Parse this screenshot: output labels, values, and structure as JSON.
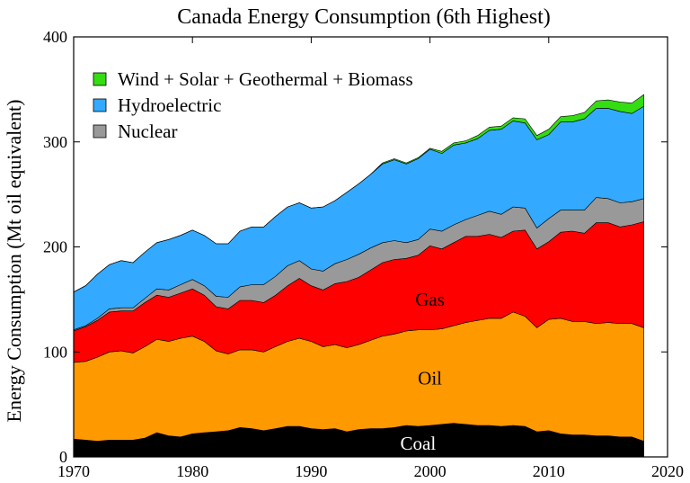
{
  "chart_data": {
    "type": "area",
    "title": "Canada Energy Consumption (6th Highest)",
    "xlabel": "",
    "ylabel": "Energy Consumption (Mt oil equivalent)",
    "xlim": [
      1970,
      2020
    ],
    "ylim": [
      0,
      400
    ],
    "xticks": [
      1970,
      1980,
      1990,
      2000,
      2010,
      2020
    ],
    "yticks": [
      0,
      100,
      200,
      300,
      400
    ],
    "stacked": true,
    "grid": false,
    "legend_position": "top-left",
    "x": [
      1970,
      1971,
      1972,
      1973,
      1974,
      1975,
      1976,
      1977,
      1978,
      1979,
      1980,
      1981,
      1982,
      1983,
      1984,
      1985,
      1986,
      1987,
      1988,
      1989,
      1990,
      1991,
      1992,
      1993,
      1994,
      1995,
      1996,
      1997,
      1998,
      1999,
      2000,
      2001,
      2002,
      2003,
      2004,
      2005,
      2006,
      2007,
      2008,
      2009,
      2010,
      2011,
      2012,
      2013,
      2014,
      2015,
      2016,
      2017,
      2018
    ],
    "series": [
      {
        "name": "Coal",
        "color": "#000000",
        "values": [
          17,
          16,
          15,
          16,
          16,
          16,
          18,
          23,
          20,
          19,
          22,
          23,
          24,
          25,
          28,
          27,
          25,
          27,
          29,
          29,
          27,
          26,
          27,
          24,
          26,
          27,
          27,
          28,
          30,
          29,
          30,
          31,
          32,
          31,
          30,
          30,
          29,
          30,
          29,
          24,
          25,
          22,
          21,
          21,
          20,
          20,
          19,
          19,
          15
        ]
      },
      {
        "name": "Oil",
        "color": "#ff9900",
        "values": [
          73,
          75,
          80,
          84,
          85,
          83,
          87,
          89,
          90,
          94,
          93,
          87,
          77,
          73,
          74,
          75,
          75,
          78,
          81,
          84,
          83,
          79,
          80,
          80,
          81,
          84,
          88,
          89,
          90,
          92,
          91,
          91,
          93,
          97,
          100,
          102,
          103,
          108,
          105,
          99,
          106,
          110,
          108,
          108,
          107,
          108,
          108,
          108,
          108
        ]
      },
      {
        "name": "Gas",
        "color": "#ff0000",
        "values": [
          30,
          33,
          35,
          38,
          38,
          40,
          42,
          42,
          42,
          43,
          45,
          44,
          42,
          43,
          47,
          47,
          47,
          49,
          53,
          57,
          53,
          54,
          58,
          63,
          64,
          67,
          70,
          71,
          69,
          71,
          80,
          76,
          79,
          82,
          80,
          80,
          77,
          77,
          82,
          75,
          74,
          82,
          86,
          84,
          96,
          95,
          92,
          94,
          101
        ]
      },
      {
        "name": "Nuclear",
        "color": "#999999",
        "values": [
          1,
          1,
          2,
          3,
          3,
          3,
          4,
          6,
          7,
          8,
          9,
          9,
          10,
          11,
          13,
          15,
          17,
          18,
          19,
          17,
          16,
          18,
          19,
          21,
          22,
          21,
          19,
          18,
          15,
          15,
          16,
          17,
          17,
          16,
          20,
          22,
          22,
          23,
          21,
          20,
          22,
          21,
          20,
          22,
          24,
          23,
          23,
          22,
          22
        ]
      },
      {
        "name": "Hydroelectric",
        "color": "#33aaff",
        "values": [
          36,
          38,
          42,
          42,
          45,
          43,
          44,
          44,
          48,
          47,
          47,
          48,
          50,
          51,
          53,
          55,
          55,
          57,
          56,
          55,
          58,
          61,
          60,
          64,
          67,
          70,
          75,
          77,
          75,
          77,
          76,
          74,
          76,
          73,
          73,
          77,
          81,
          82,
          81,
          84,
          80,
          84,
          84,
          87,
          85,
          86,
          87,
          84,
          88
        ]
      },
      {
        "name": "Wind + Solar + Geothermal + Biomass",
        "color": "#33dd11",
        "values": [
          0,
          0,
          0,
          0,
          0,
          0,
          0,
          0,
          0,
          0,
          0,
          0,
          0,
          0,
          0,
          0,
          0,
          0,
          0,
          0,
          0,
          0,
          0,
          0,
          0,
          0,
          1,
          1,
          1,
          1,
          1,
          2,
          2,
          2,
          3,
          3,
          3,
          3,
          4,
          4,
          5,
          5,
          6,
          6,
          7,
          8,
          9,
          10,
          11
        ]
      }
    ],
    "annotations": [
      {
        "text": "Gas",
        "x": 2000,
        "y": 150
      },
      {
        "text": "Oil",
        "x": 2000,
        "y": 75
      },
      {
        "text": "Coal",
        "x": 1999,
        "y": 13
      }
    ]
  }
}
